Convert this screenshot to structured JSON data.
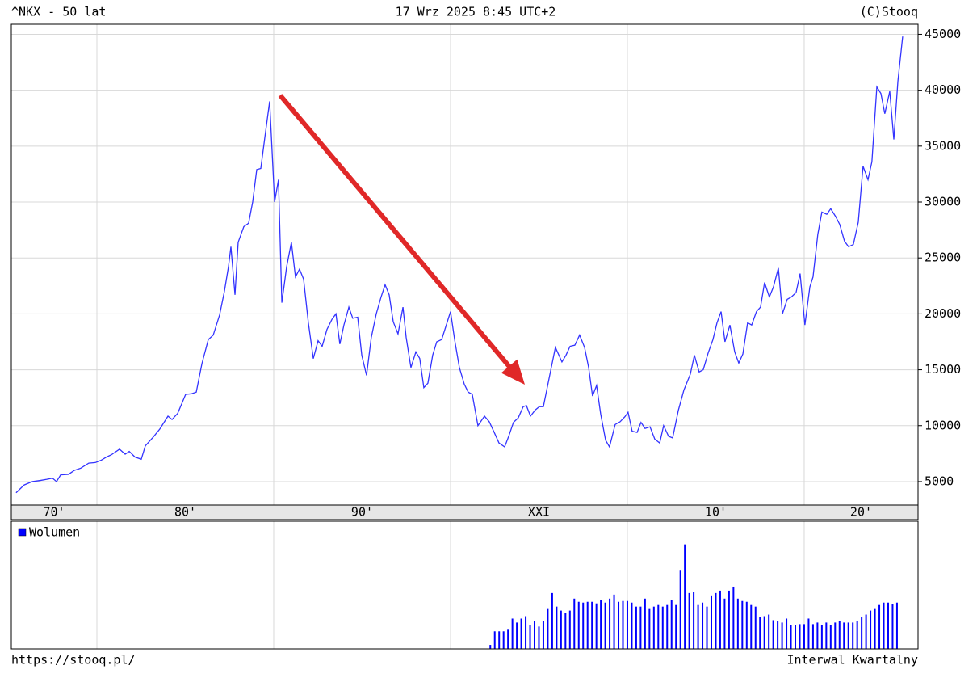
{
  "chart_data": [
    {
      "type": "line",
      "title": "^NKX - 50 lat",
      "subtitle": "17 Wrz 2025 8:45 UTC+2",
      "source": "(C)Stooq",
      "url": "https://stooq.pl/",
      "interval": "Interwal Kwartalny",
      "xlim": [
        1975.16,
        2026.44
      ],
      "xticks": [
        {
          "value": 1970,
          "label": "70'"
        },
        {
          "value": 1980,
          "label": "80'"
        },
        {
          "value": 1990,
          "label": "90'"
        },
        {
          "value": 2000,
          "label": "XXI"
        },
        {
          "value": 2010,
          "label": "10'"
        },
        {
          "value": 2020,
          "label": "20'"
        }
      ],
      "ylim": [
        2900,
        45900
      ],
      "yticks": [
        5000,
        10000,
        15000,
        20000,
        25000,
        30000,
        35000,
        40000,
        45000
      ],
      "grid": true,
      "series": [
        {
          "color": "#3333ff",
          "x": [
            1975.43,
            1975.89,
            1976.35,
            1976.8,
            1977.17,
            1977.49,
            1977.72,
            1977.95,
            1978.4,
            1978.72,
            1979.09,
            1979.54,
            1979.91,
            1980.23,
            1980.55,
            1980.82,
            1981.28,
            1981.6,
            1981.83,
            1982.15,
            1982.51,
            1982.74,
            1983.2,
            1983.56,
            1984.02,
            1984.25,
            1984.57,
            1985.02,
            1985.34,
            1985.62,
            1985.94,
            1986.3,
            1986.58,
            1986.94,
            1987.21,
            1987.44,
            1987.58,
            1987.81,
            1987.99,
            1988.31,
            1988.58,
            1988.81,
            1989.04,
            1989.27,
            1989.5,
            1989.77,
            1990.05,
            1990.27,
            1990.46,
            1990.73,
            1991.0,
            1991.23,
            1991.46,
            1991.69,
            1991.96,
            1992.24,
            1992.51,
            1992.74,
            1993.01,
            1993.29,
            1993.52,
            1993.74,
            1993.97,
            1994.25,
            1994.47,
            1994.75,
            1994.98,
            1995.25,
            1995.52,
            1995.8,
            1996.07,
            1996.3,
            1996.53,
            1996.76,
            1997.03,
            1997.31,
            1997.49,
            1997.76,
            1998.04,
            1998.26,
            1998.49,
            1998.72,
            1998.99,
            1999.22,
            1999.5,
            2000.0,
            2000.23,
            2000.5,
            2000.78,
            2001.0,
            2001.23,
            2001.55,
            2001.92,
            2002.19,
            2002.47,
            2002.74,
            2003.06,
            2003.29,
            2003.56,
            2003.83,
            2004.11,
            2004.29,
            2004.52,
            2004.79,
            2005.02,
            2005.25,
            2005.57,
            2005.93,
            2006.3,
            2006.53,
            2006.76,
            2007.03,
            2007.3,
            2007.58,
            2007.81,
            2008.03,
            2008.26,
            2008.49,
            2008.77,
            2008.99,
            2009.31,
            2009.59,
            2009.86,
            2010.04,
            2010.27,
            2010.55,
            2010.77,
            2011.0,
            2011.28,
            2011.55,
            2011.83,
            2012.05,
            2012.33,
            2012.56,
            2012.88,
            2013.2,
            2013.56,
            2013.79,
            2014.06,
            2014.29,
            2014.57,
            2014.84,
            2015.07,
            2015.3,
            2015.52,
            2015.8,
            2016.07,
            2016.3,
            2016.53,
            2016.8,
            2017.03,
            2017.3,
            2017.53,
            2017.76,
            2018.03,
            2018.26,
            2018.54,
            2018.77,
            2019.04,
            2019.27,
            2019.54,
            2019.77,
            2020.04,
            2020.32,
            2020.5,
            2020.77,
            2021.0,
            2021.28,
            2021.5,
            2021.78,
            2022.01,
            2022.28,
            2022.51,
            2022.78,
            2023.06,
            2023.33,
            2023.61,
            2023.83,
            2024.11,
            2024.34,
            2024.56,
            2024.84,
            2025.07,
            2025.3,
            2025.57
          ],
          "values": [
            4000,
            4700,
            5000,
            5100,
            5200,
            5300,
            5000,
            5600,
            5650,
            6000,
            6200,
            6650,
            6700,
            6900,
            7200,
            7400,
            7900,
            7450,
            7700,
            7200,
            7000,
            8200,
            9000,
            9700,
            10850,
            10550,
            11100,
            12800,
            12850,
            13000,
            15550,
            17700,
            18100,
            19900,
            22000,
            24200,
            26000,
            21700,
            26400,
            27800,
            28100,
            30000,
            32900,
            33000,
            35800,
            39000,
            30000,
            32000,
            21000,
            24200,
            26400,
            23300,
            24000,
            23100,
            19200,
            16000,
            17600,
            17100,
            18600,
            19500,
            20000,
            17300,
            19000,
            20600,
            19600,
            19700,
            16300,
            14500,
            17900,
            20000,
            21500,
            22600,
            21700,
            19300,
            18200,
            20600,
            17900,
            15200,
            16600,
            16000,
            13400,
            13800,
            16300,
            17500,
            17700,
            20200,
            17700,
            15200,
            13700,
            13000,
            12800,
            10000,
            10850,
            10350,
            9400,
            8450,
            8100,
            9050,
            10300,
            10700,
            11700,
            11800,
            10850,
            11400,
            11700,
            11700,
            14200,
            17000,
            15700,
            16300,
            17100,
            17200,
            18100,
            17000,
            15200,
            12650,
            13600,
            11050,
            8700,
            8100,
            10100,
            10350,
            10800,
            11200,
            9500,
            9400,
            10300,
            9750,
            9900,
            8800,
            8450,
            10000,
            9050,
            8900,
            11350,
            13200,
            14600,
            16300,
            14800,
            15000,
            16500,
            17700,
            19200,
            20200,
            17500,
            19000,
            16600,
            15600,
            16400,
            19200,
            19000,
            20200,
            20600,
            22800,
            21500,
            22400,
            24100,
            20000,
            21300,
            21500,
            21900,
            23600,
            19000,
            22400,
            23300,
            27100,
            29100,
            28900,
            29400,
            28700,
            28000,
            26500,
            26000,
            26200,
            28200,
            33200,
            32000,
            33600,
            40300,
            39700,
            37900,
            39900,
            35600,
            40800,
            44800
          ]
        }
      ]
    },
    {
      "type": "bar",
      "xlim": [
        1975.16,
        2026.44
      ],
      "ylim": [
        0,
        160
      ],
      "series": [
        {
          "name": "Wolumen",
          "color": "#0000ff",
          "x": [
            2002.25,
            2002.5,
            2002.75,
            2003,
            2003.25,
            2003.5,
            2003.75,
            2004,
            2004.25,
            2004.5,
            2004.75,
            2005,
            2005.25,
            2005.5,
            2005.75,
            2006,
            2006.25,
            2006.5,
            2006.75,
            2007,
            2007.25,
            2007.5,
            2007.75,
            2008,
            2008.25,
            2008.5,
            2008.75,
            2009,
            2009.25,
            2009.5,
            2009.75,
            2010,
            2010.25,
            2010.5,
            2010.75,
            2011,
            2011.25,
            2011.5,
            2011.75,
            2012,
            2012.25,
            2012.5,
            2012.75,
            2013,
            2013.25,
            2013.5,
            2013.75,
            2014,
            2014.25,
            2014.5,
            2014.75,
            2015,
            2015.25,
            2015.5,
            2015.75,
            2016,
            2016.25,
            2016.5,
            2016.75,
            2017,
            2017.25,
            2017.5,
            2017.75,
            2018,
            2018.25,
            2018.5,
            2018.75,
            2019,
            2019.25,
            2019.5,
            2019.75,
            2020,
            2020.25,
            2020.5,
            2020.75,
            2021,
            2021.25,
            2021.5,
            2021.75,
            2022,
            2022.25,
            2022.5,
            2022.75,
            2023,
            2023.25,
            2023.5,
            2023.75,
            2024,
            2024.25,
            2024.5,
            2024.75,
            2025,
            2025.25
          ],
          "values": [
            5,
            22,
            22,
            22,
            25,
            38,
            33,
            38,
            41,
            30,
            35,
            28,
            35,
            51,
            70,
            53,
            48,
            45,
            48,
            63,
            59,
            58,
            59,
            59,
            57,
            61,
            58,
            63,
            68,
            59,
            60,
            60,
            58,
            53,
            53,
            63,
            51,
            53,
            55,
            53,
            55,
            61,
            55,
            99,
            131,
            70,
            71,
            55,
            58,
            53,
            67,
            70,
            73,
            63,
            73,
            78,
            63,
            60,
            59,
            55,
            53,
            40,
            41,
            43,
            36,
            35,
            33,
            38,
            30,
            30,
            31,
            31,
            38,
            31,
            33,
            30,
            33,
            30,
            33,
            35,
            33,
            33,
            33,
            35,
            40,
            43,
            48,
            51,
            55,
            58,
            58,
            56,
            58
          ]
        }
      ]
    }
  ]
}
